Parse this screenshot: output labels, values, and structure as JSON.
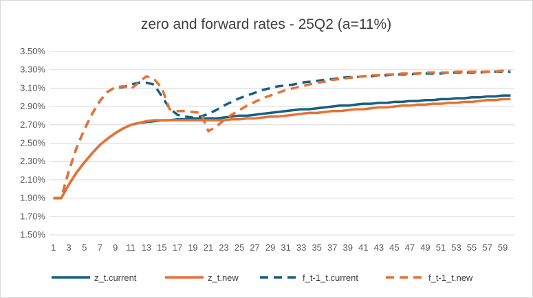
{
  "chart_data": {
    "type": "line",
    "title": "zero and forward rates  -  25Q2  (a=11%)",
    "xlabel": "",
    "ylabel": "",
    "ylim": [
      0.015,
      0.035
    ],
    "yticks": [
      0.015,
      0.017,
      0.019,
      0.021,
      0.023,
      0.025,
      0.027,
      0.029,
      0.031,
      0.033,
      0.035
    ],
    "ytick_labels": [
      "1.50%",
      "1.70%",
      "1.90%",
      "2.10%",
      "2.30%",
      "2.50%",
      "2.70%",
      "2.90%",
      "3.10%",
      "3.30%",
      "3.50%"
    ],
    "x": [
      1,
      2,
      3,
      4,
      5,
      6,
      7,
      8,
      9,
      10,
      11,
      12,
      13,
      14,
      15,
      16,
      17,
      18,
      19,
      20,
      21,
      22,
      23,
      24,
      25,
      26,
      27,
      28,
      29,
      30,
      31,
      32,
      33,
      34,
      35,
      36,
      37,
      38,
      39,
      40,
      41,
      42,
      43,
      44,
      45,
      46,
      47,
      48,
      49,
      50,
      51,
      52,
      53,
      54,
      55,
      56,
      57,
      58,
      59,
      60
    ],
    "xtick_labels": [
      "1",
      "3",
      "5",
      "7",
      "9",
      "11",
      "13",
      "15",
      "17",
      "19",
      "21",
      "23",
      "25",
      "27",
      "29",
      "31",
      "33",
      "35",
      "37",
      "39",
      "41",
      "43",
      "45",
      "47",
      "49",
      "51",
      "53",
      "55",
      "57",
      "59"
    ],
    "grid": true,
    "legend_position": "bottom",
    "series": [
      {
        "name": "z_t.current",
        "color": "#156082",
        "dash": "solid",
        "values": [
          0.019,
          0.019,
          0.0205,
          0.0218,
          0.0229,
          0.0239,
          0.0248,
          0.0255,
          0.0261,
          0.0266,
          0.027,
          0.0272,
          0.0273,
          0.0274,
          0.0275,
          0.0275,
          0.0276,
          0.0276,
          0.0277,
          0.0277,
          0.0277,
          0.0277,
          0.0278,
          0.0279,
          0.028,
          0.028,
          0.0281,
          0.0282,
          0.0283,
          0.0284,
          0.0285,
          0.0286,
          0.0287,
          0.0287,
          0.0288,
          0.0289,
          0.029,
          0.0291,
          0.0291,
          0.0292,
          0.0293,
          0.0293,
          0.0294,
          0.0294,
          0.0295,
          0.0295,
          0.0296,
          0.0296,
          0.0297,
          0.0297,
          0.0298,
          0.0298,
          0.0299,
          0.0299,
          0.03,
          0.03,
          0.0301,
          0.0301,
          0.0302,
          0.0302
        ]
      },
      {
        "name": "z_t.new",
        "color": "#E97132",
        "dash": "solid",
        "values": [
          0.019,
          0.019,
          0.0205,
          0.0218,
          0.0229,
          0.0239,
          0.0248,
          0.0255,
          0.0261,
          0.0266,
          0.027,
          0.0272,
          0.0274,
          0.0275,
          0.0275,
          0.0275,
          0.0275,
          0.0275,
          0.0275,
          0.0275,
          0.0275,
          0.0275,
          0.0275,
          0.0276,
          0.0276,
          0.0277,
          0.0277,
          0.0278,
          0.0279,
          0.0279,
          0.028,
          0.0281,
          0.0282,
          0.0283,
          0.0283,
          0.0284,
          0.0285,
          0.0285,
          0.0286,
          0.0287,
          0.0287,
          0.0288,
          0.0289,
          0.0289,
          0.029,
          0.0291,
          0.0291,
          0.0292,
          0.0292,
          0.0293,
          0.0293,
          0.0294,
          0.0294,
          0.0295,
          0.0295,
          0.0296,
          0.0297,
          0.0297,
          0.0298,
          0.0298
        ]
      },
      {
        "name": "f_t-1_t.current",
        "color": "#156082",
        "dash": "dashed",
        "values": [
          0.019,
          0.019,
          0.022,
          0.0245,
          0.0265,
          0.0282,
          0.0296,
          0.0306,
          0.0311,
          0.0311,
          0.0314,
          0.0316,
          0.0316,
          0.0314,
          0.0301,
          0.0288,
          0.0281,
          0.0279,
          0.0278,
          0.0279,
          0.0282,
          0.0286,
          0.0291,
          0.0295,
          0.0299,
          0.0302,
          0.0305,
          0.0308,
          0.031,
          0.0312,
          0.0313,
          0.0314,
          0.0316,
          0.0317,
          0.0318,
          0.0319,
          0.032,
          0.0321,
          0.0322,
          0.0322,
          0.0323,
          0.0323,
          0.0324,
          0.0324,
          0.0325,
          0.0325,
          0.0325,
          0.0326,
          0.0326,
          0.0326,
          0.0326,
          0.0327,
          0.0327,
          0.0327,
          0.0327,
          0.0327,
          0.0328,
          0.0328,
          0.0328,
          0.0328
        ]
      },
      {
        "name": "f_t-1_t.new",
        "color": "#E97132",
        "dash": "dashed",
        "values": [
          0.019,
          0.019,
          0.022,
          0.0245,
          0.0265,
          0.0282,
          0.0296,
          0.0306,
          0.0311,
          0.0312,
          0.0309,
          0.0316,
          0.0323,
          0.032,
          0.031,
          0.0287,
          0.0285,
          0.0285,
          0.0284,
          0.0283,
          0.0263,
          0.0268,
          0.0275,
          0.0281,
          0.0286,
          0.0291,
          0.0295,
          0.0299,
          0.0302,
          0.0305,
          0.0308,
          0.031,
          0.0312,
          0.0314,
          0.0316,
          0.0317,
          0.0319,
          0.032,
          0.0321,
          0.0322,
          0.0323,
          0.0324,
          0.0324,
          0.0325,
          0.0325,
          0.0326,
          0.0326,
          0.0326,
          0.0327,
          0.0327,
          0.0327,
          0.0327,
          0.0328,
          0.0328,
          0.0328,
          0.0328,
          0.0328,
          0.0328,
          0.0329,
          0.0329
        ]
      }
    ]
  }
}
